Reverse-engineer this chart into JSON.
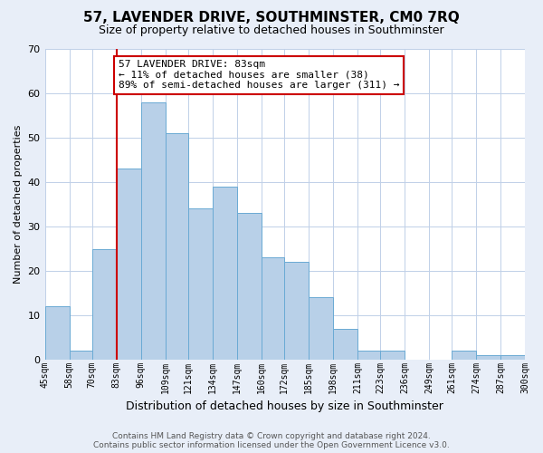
{
  "title": "57, LAVENDER DRIVE, SOUTHMINSTER, CM0 7RQ",
  "subtitle": "Size of property relative to detached houses in Southminster",
  "xlabel": "Distribution of detached houses by size in Southminster",
  "ylabel": "Number of detached properties",
  "bar_left_edges": [
    45,
    58,
    70,
    83,
    96,
    109,
    121,
    134,
    147,
    160,
    172,
    185,
    198,
    211,
    223,
    236,
    249,
    261,
    274,
    287
  ],
  "bar_widths": [
    13,
    12,
    13,
    13,
    13,
    12,
    13,
    13,
    13,
    12,
    13,
    13,
    13,
    12,
    13,
    13,
    13,
    13,
    13,
    13
  ],
  "bar_heights": [
    12,
    2,
    25,
    43,
    58,
    51,
    34,
    39,
    33,
    23,
    22,
    14,
    7,
    2,
    2,
    0,
    0,
    2,
    1,
    1
  ],
  "tick_labels": [
    "45sqm",
    "58sqm",
    "70sqm",
    "83sqm",
    "96sqm",
    "109sqm",
    "121sqm",
    "134sqm",
    "147sqm",
    "160sqm",
    "172sqm",
    "185sqm",
    "198sqm",
    "211sqm",
    "223sqm",
    "236sqm",
    "249sqm",
    "261sqm",
    "274sqm",
    "287sqm",
    "300sqm"
  ],
  "xlim": [
    45,
    300
  ],
  "ylim": [
    0,
    70
  ],
  "yticks": [
    0,
    10,
    20,
    30,
    40,
    50,
    60,
    70
  ],
  "bar_color": "#b8d0e8",
  "bar_edge_color": "#6aaad4",
  "marker_x": 83,
  "marker_color": "#cc0000",
  "annotation_title": "57 LAVENDER DRIVE: 83sqm",
  "annotation_line1": "← 11% of detached houses are smaller (38)",
  "annotation_line2": "89% of semi-detached houses are larger (311) →",
  "annotation_box_color": "#cc0000",
  "annotation_bg_color": "#ffffff",
  "footer_line1": "Contains HM Land Registry data © Crown copyright and database right 2024.",
  "footer_line2": "Contains public sector information licensed under the Open Government Licence v3.0.",
  "background_color": "#e8eef8",
  "plot_background_color": "#ffffff",
  "grid_color": "#c0d0e8",
  "title_fontsize": 11,
  "subtitle_fontsize": 9,
  "xlabel_fontsize": 9,
  "ylabel_fontsize": 8,
  "tick_fontsize": 7,
  "annotation_fontsize": 8,
  "footer_fontsize": 6.5
}
